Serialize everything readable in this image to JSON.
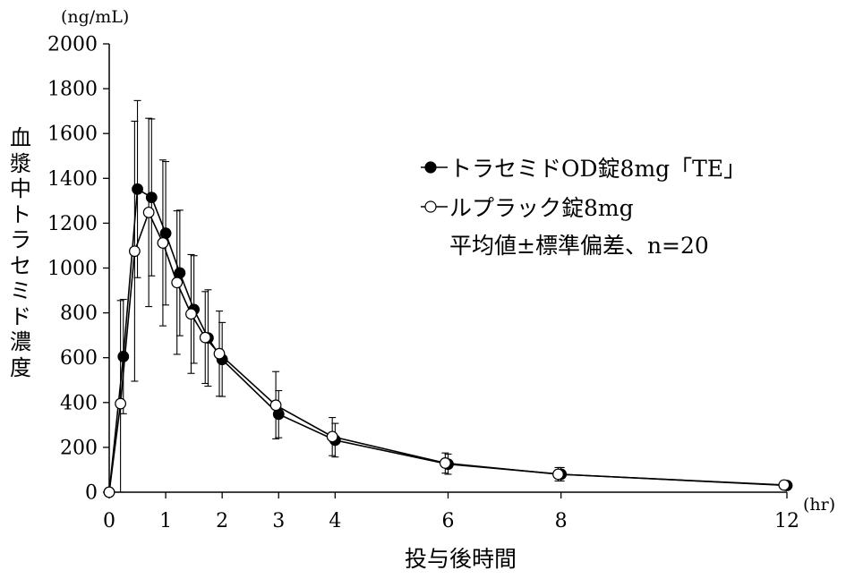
{
  "chart_data": {
    "type": "line",
    "y_unit": "(ng/mL)",
    "x_unit": "(hr)",
    "xlabel": "投与後時間",
    "ylabel": "血漿中トラセミド濃度",
    "xlim": [
      0,
      12
    ],
    "ylim": [
      0,
      2000
    ],
    "x_ticks": [
      0,
      1,
      2,
      3,
      4,
      6,
      8,
      12
    ],
    "y_ticks": [
      0,
      200,
      400,
      600,
      800,
      1000,
      1200,
      1400,
      1600,
      1800,
      2000
    ],
    "grid": false,
    "legend_position": "upper-right",
    "note": "平均値±標準偏差、n=20",
    "series": [
      {
        "name": "トラセミドOD錠8mg「TE」",
        "marker": "filled-circle",
        "color": "#000000",
        "x": [
          0,
          0.25,
          0.5,
          0.75,
          1,
          1.25,
          1.5,
          1.75,
          2,
          3,
          4,
          6,
          8,
          12
        ],
        "y": [
          0,
          605,
          1352,
          1315,
          1155,
          978,
          815,
          688,
          592,
          348,
          232,
          125,
          80,
          30
        ],
        "err": [
          0,
          255,
          395,
          350,
          320,
          280,
          240,
          215,
          165,
          105,
          75,
          45,
          30,
          12
        ]
      },
      {
        "name": "ルプラック錠8mg",
        "marker": "open-circle",
        "color": "#000000",
        "x": [
          0,
          0.2,
          0.45,
          0.7,
          0.95,
          1.2,
          1.45,
          1.7,
          1.95,
          2.95,
          3.95,
          5.95,
          7.95,
          11.95
        ],
        "y": [
          0,
          395,
          1075,
          1248,
          1112,
          935,
          795,
          690,
          618,
          388,
          248,
          130,
          80,
          32
        ],
        "err": [
          0,
          460,
          580,
          420,
          370,
          320,
          265,
          205,
          190,
          150,
          85,
          45,
          30,
          12
        ]
      }
    ]
  }
}
